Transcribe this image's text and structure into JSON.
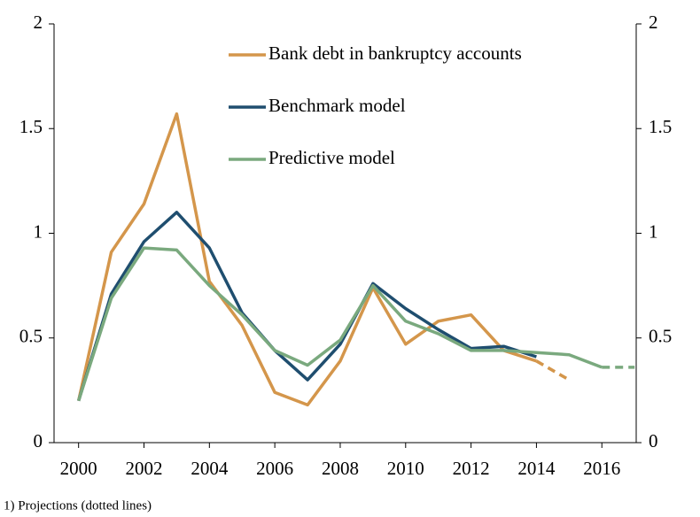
{
  "chart_data": {
    "type": "line",
    "note": "1) Projections (dotted lines)",
    "x": [
      2000,
      2001,
      2002,
      2003,
      2004,
      2005,
      2006,
      2007,
      2008,
      2009,
      2010,
      2011,
      2012,
      2013,
      2014,
      2015,
      2016,
      2017
    ],
    "xlim": [
      1999.25,
      2017.05
    ],
    "xticks": [
      2000,
      2002,
      2004,
      2006,
      2008,
      2010,
      2012,
      2014,
      2016
    ],
    "ylim": [
      0,
      2
    ],
    "yticks": [
      0,
      0.5,
      1,
      1.5,
      2
    ],
    "y2lim": [
      0,
      2
    ],
    "y2ticks": [
      0,
      0.5,
      1,
      1.5,
      2
    ],
    "series": [
      {
        "name": "Bank debt in bankruptcy accounts",
        "color": "#d4964b",
        "dash_from": 2014,
        "values": [
          0.2,
          0.91,
          1.14,
          1.57,
          0.77,
          0.56,
          0.24,
          0.18,
          0.39,
          0.74,
          0.47,
          0.58,
          0.61,
          0.44,
          0.39,
          0.3,
          null,
          null
        ]
      },
      {
        "name": "Benchmark model",
        "color": "#1f4e6f",
        "values": [
          0.2,
          0.71,
          0.96,
          1.1,
          0.93,
          0.62,
          0.44,
          0.3,
          0.47,
          0.76,
          0.64,
          0.54,
          0.45,
          0.46,
          0.41,
          null,
          null,
          null
        ]
      },
      {
        "name": "Predictive model",
        "color": "#7aa97e",
        "dash_from": 2016,
        "values": [
          0.2,
          0.69,
          0.93,
          0.92,
          0.75,
          0.61,
          0.44,
          0.37,
          0.49,
          0.75,
          0.58,
          0.52,
          0.44,
          0.44,
          0.43,
          0.42,
          0.36,
          0.36
        ]
      }
    ]
  }
}
